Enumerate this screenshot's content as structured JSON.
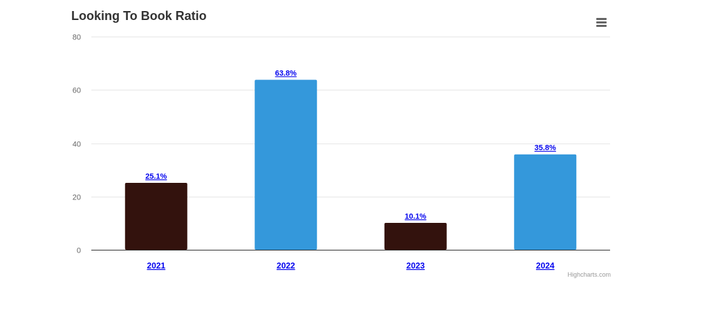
{
  "chart_data": {
    "type": "bar",
    "title": "Looking To Book Ratio",
    "categories": [
      "2021",
      "2022",
      "2023",
      "2024"
    ],
    "values": [
      25.1,
      63.8,
      10.1,
      35.8
    ],
    "data_labels": [
      "25.1%",
      "63.8%",
      "10.1%",
      "35.8%"
    ],
    "bar_colors": [
      "#33120d",
      "#3498db",
      "#33120d",
      "#3498db"
    ],
    "ylim": [
      0,
      80
    ],
    "yticks": [
      0,
      20,
      40,
      60,
      80
    ],
    "grid": true,
    "xlabel": "",
    "ylabel": "",
    "category_label_color": "#0000ee",
    "data_label_color": "#0000ee"
  },
  "menu": {
    "icon": "hamburger-menu-icon"
  },
  "credits": "Highcharts.com"
}
